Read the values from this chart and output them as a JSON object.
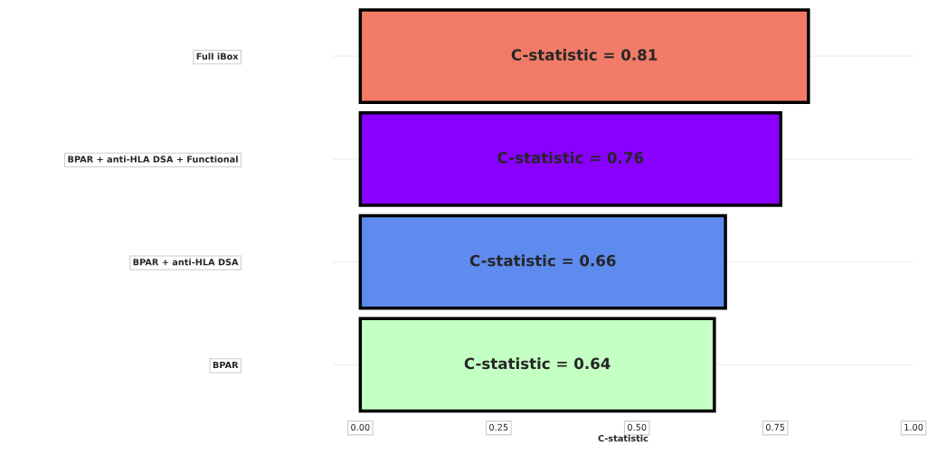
{
  "chart_data": {
    "type": "bar",
    "orientation": "horizontal",
    "xlabel": "C-statistic",
    "categories": [
      "Full iBox",
      "BPAR + anti-HLA DSA + Functional",
      "BPAR + anti-HLA DSA",
      "BPAR"
    ],
    "values": [
      0.81,
      0.76,
      0.66,
      0.64
    ],
    "colors": [
      "#f27b68",
      "#8a00ff",
      "#5f8bef",
      "#c4ffc4"
    ],
    "value_labels": [
      "C-statistic = 0.81",
      "C-statistic = 0.76",
      "C-statistic = 0.66",
      "C-statistic = 0.64"
    ],
    "xlim": [
      -0.05,
      1.0
    ],
    "xticks": [
      {
        "value": 0,
        "label": "0.00"
      },
      {
        "value": 0.25,
        "label": "0.25"
      },
      {
        "value": 0.5,
        "label": "0.50"
      },
      {
        "value": 0.75,
        "label": "0.75"
      },
      {
        "value": 1.0,
        "label": "1.00"
      }
    ],
    "grid": "y"
  }
}
